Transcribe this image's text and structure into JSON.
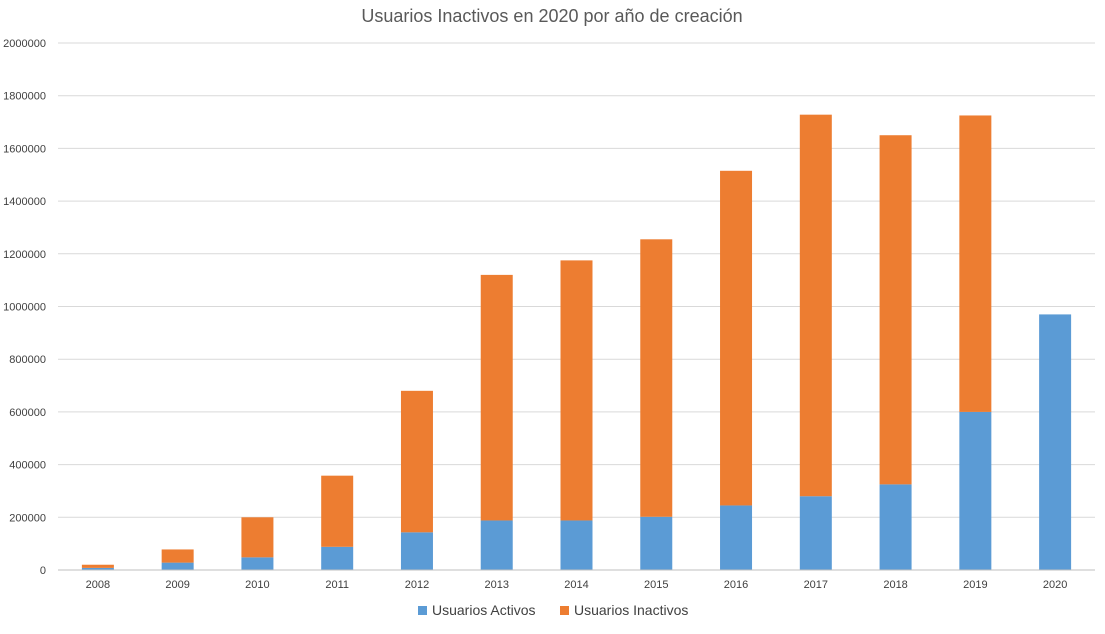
{
  "chart_data": {
    "type": "bar",
    "stacked": true,
    "title": "Usuarios Inactivos en 2020 por año de creación",
    "xlabel": "",
    "ylabel": "",
    "ylim": [
      0,
      2000000
    ],
    "yticks": [
      "0",
      "200000",
      "400000",
      "600000",
      "800000",
      "1000000",
      "1200000",
      "1400000",
      "1600000",
      "1800000",
      "2000000"
    ],
    "categories": [
      "2008",
      "2009",
      "2010",
      "2011",
      "2012",
      "2013",
      "2014",
      "2015",
      "2016",
      "2017",
      "2018",
      "2019",
      "2020"
    ],
    "series": [
      {
        "name": "Usuarios Activos",
        "color": "#5b9bd5",
        "values": [
          8000,
          28000,
          48000,
          88000,
          143000,
          188000,
          188000,
          202000,
          245000,
          280000,
          325000,
          600000,
          970000
        ]
      },
      {
        "name": "Usuarios Inactivos",
        "color": "#ed7d31",
        "values": [
          12000,
          50000,
          152000,
          270000,
          537000,
          932000,
          987000,
          1053000,
          1270000,
          1448000,
          1325000,
          1125000,
          0
        ]
      }
    ],
    "grid": true,
    "legend": "bottom"
  }
}
